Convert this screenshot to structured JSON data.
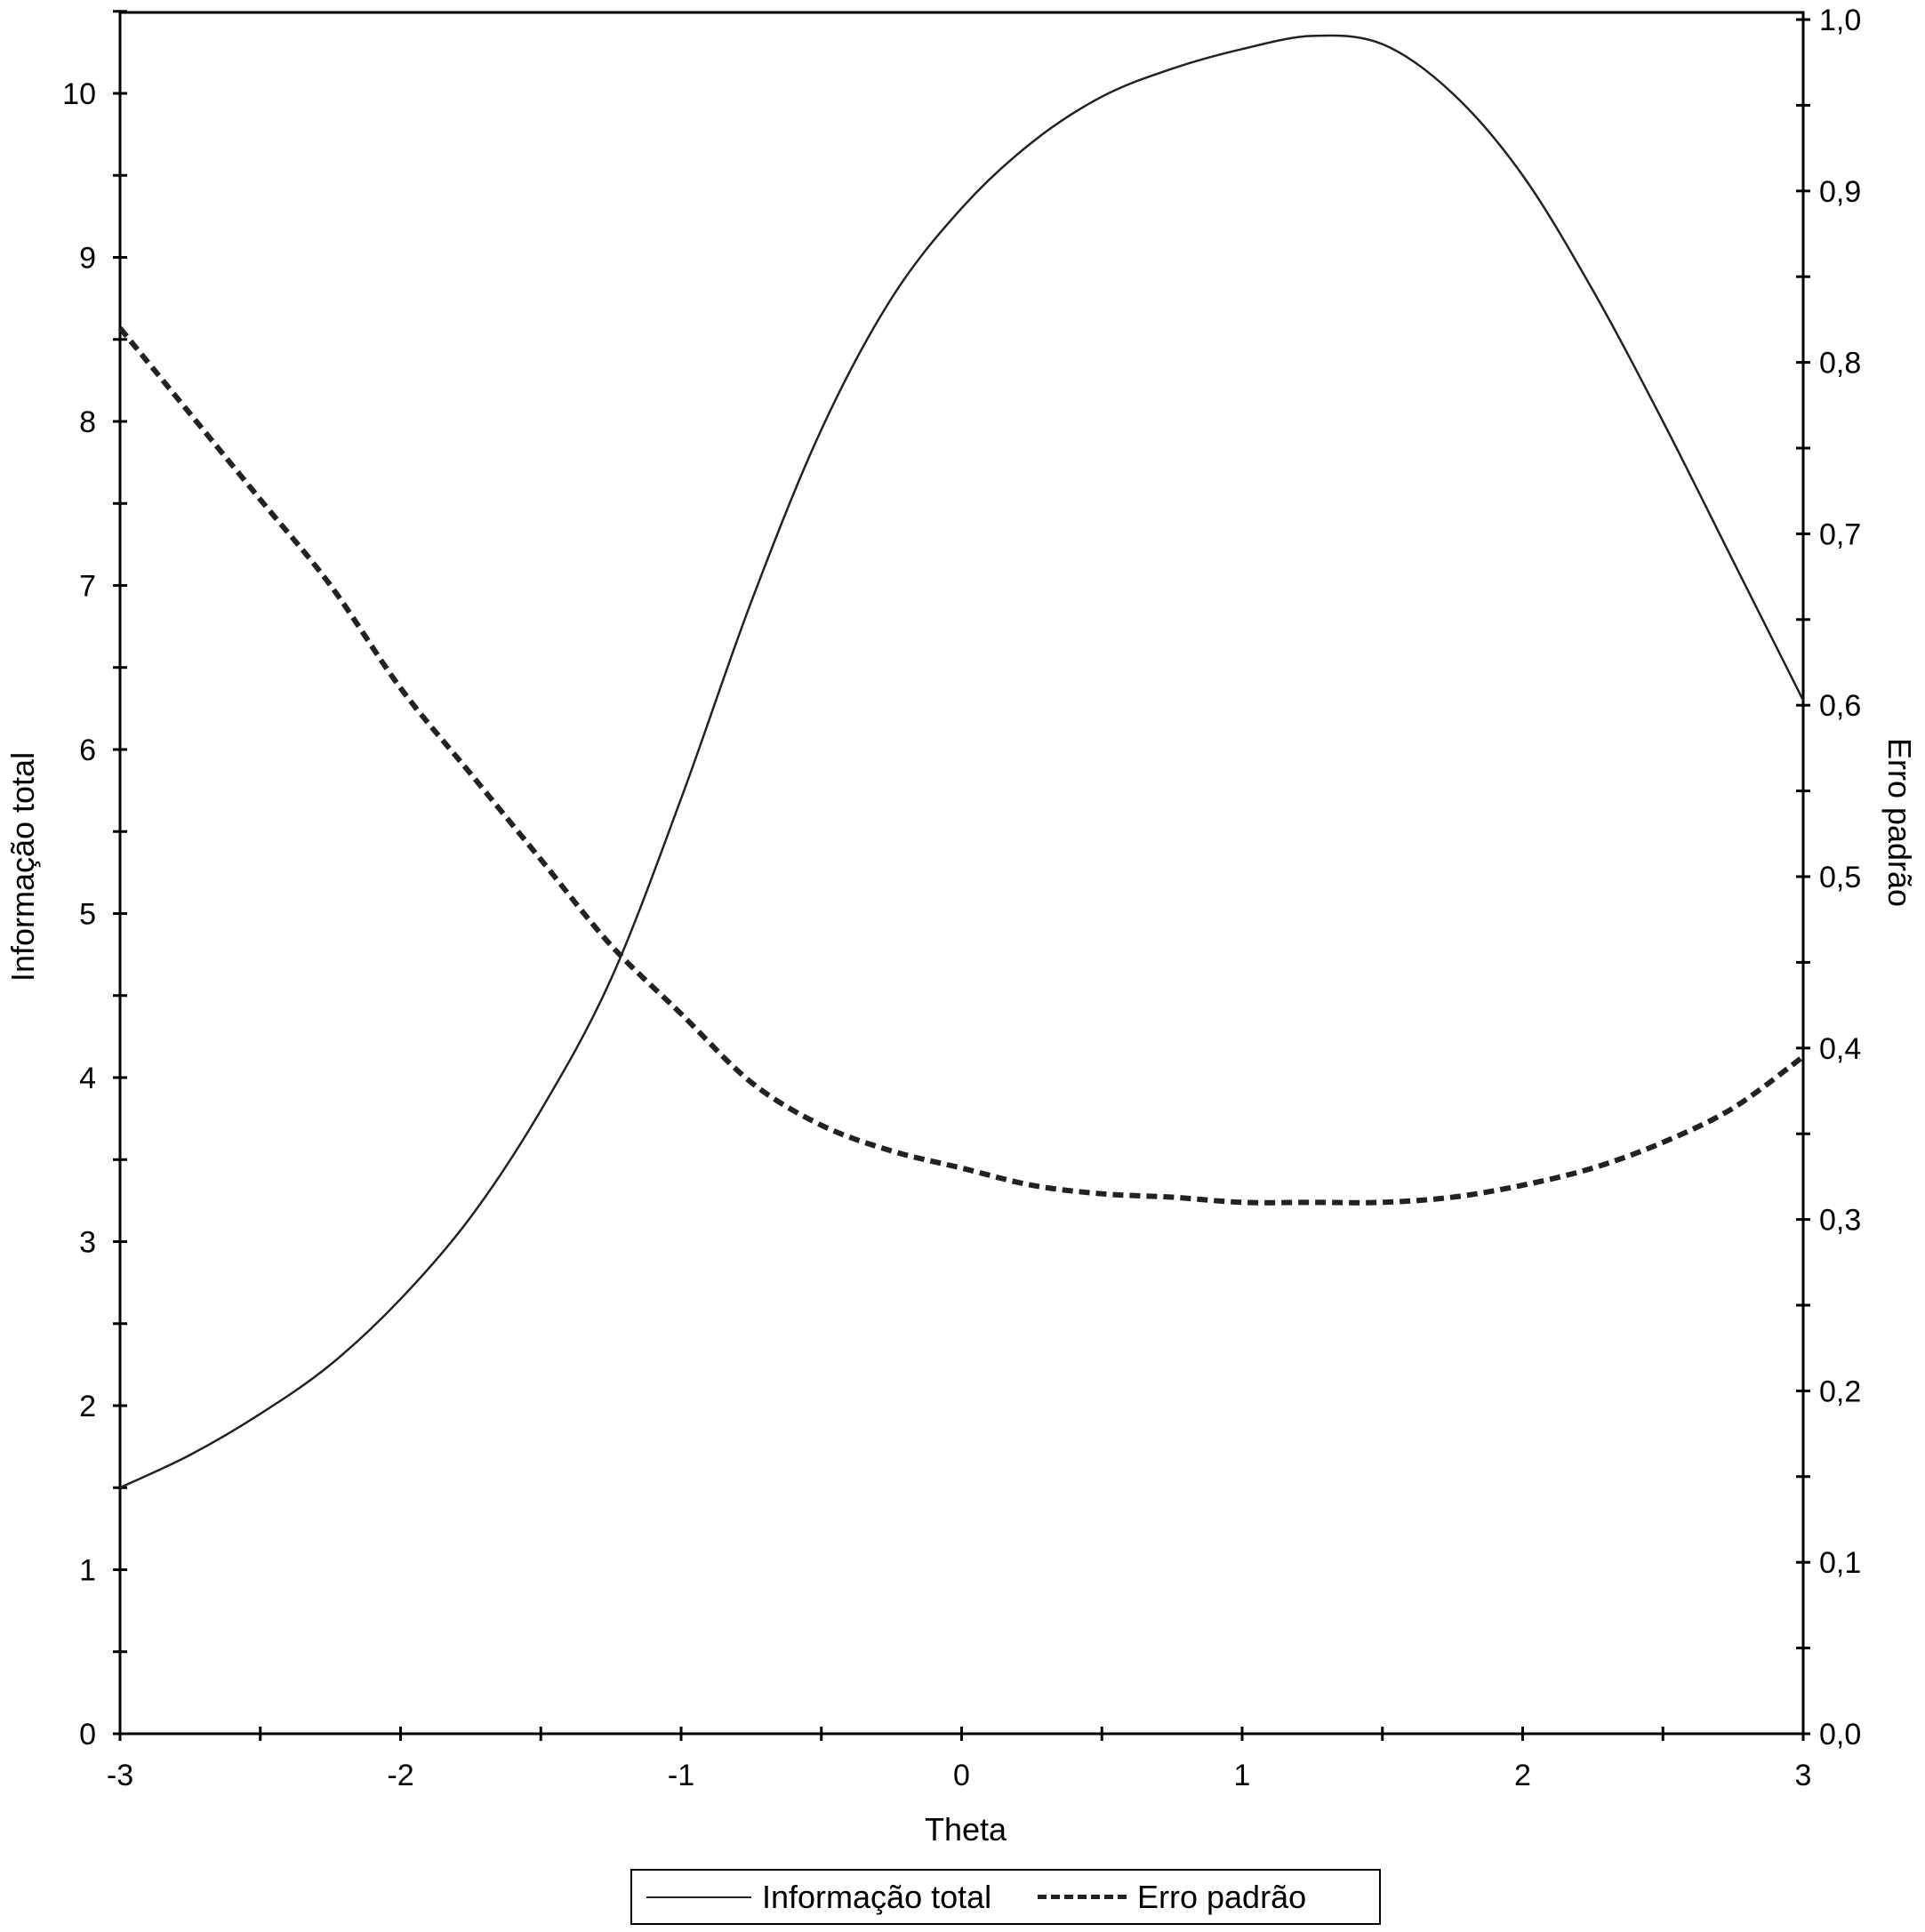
{
  "chart_data": {
    "type": "line",
    "xlabel": "Theta",
    "ylabel_left": "Informação total",
    "ylabel_right": "Erro padrão",
    "x_ticks": [
      "-3",
      "-2",
      "-1",
      "0",
      "1",
      "2",
      "3"
    ],
    "y_left_ticks": [
      "0",
      "1",
      "2",
      "3",
      "4",
      "5",
      "6",
      "7",
      "8",
      "9",
      "10"
    ],
    "y_right_ticks": [
      "0,0",
      "0,1",
      "0,2",
      "0,3",
      "0,4",
      "0,5",
      "0,6",
      "0,7",
      "0,8",
      "0,9",
      "1,0"
    ],
    "xlim": [
      -3,
      3
    ],
    "ylim_left": [
      0,
      10.5
    ],
    "ylim_right": [
      0,
      1.0
    ],
    "grid": false,
    "legend_position": "bottom",
    "series": [
      {
        "name": "Informação total",
        "axis": "left",
        "style": "solid",
        "x": [
          -3.0,
          -2.75,
          -2.5,
          -2.25,
          -2.0,
          -1.75,
          -1.5,
          -1.25,
          -1.0,
          -0.75,
          -0.5,
          -0.25,
          0.0,
          0.25,
          0.5,
          0.75,
          1.0,
          1.25,
          1.5,
          1.75,
          2.0,
          2.25,
          2.5,
          2.75,
          3.0
        ],
        "y": [
          1.5,
          1.7,
          1.95,
          2.25,
          2.65,
          3.15,
          3.8,
          4.6,
          5.7,
          6.9,
          7.95,
          8.75,
          9.3,
          9.7,
          9.98,
          10.15,
          10.27,
          10.35,
          10.3,
          10.0,
          9.5,
          8.8,
          8.0,
          7.15,
          6.3
        ]
      },
      {
        "name": "Erro padrão",
        "axis": "right",
        "style": "dashed",
        "x": [
          -3.0,
          -2.75,
          -2.5,
          -2.25,
          -2.0,
          -1.75,
          -1.5,
          -1.25,
          -1.0,
          -0.75,
          -0.5,
          -0.25,
          0.0,
          0.25,
          0.5,
          0.75,
          1.0,
          1.25,
          1.5,
          1.75,
          2.0,
          2.25,
          2.5,
          2.75,
          3.0
        ],
        "y": [
          0.82,
          0.77,
          0.72,
          0.67,
          0.61,
          0.56,
          0.51,
          0.46,
          0.42,
          0.38,
          0.355,
          0.34,
          0.33,
          0.32,
          0.315,
          0.313,
          0.31,
          0.31,
          0.31,
          0.313,
          0.32,
          0.33,
          0.345,
          0.365,
          0.395
        ]
      }
    ]
  }
}
